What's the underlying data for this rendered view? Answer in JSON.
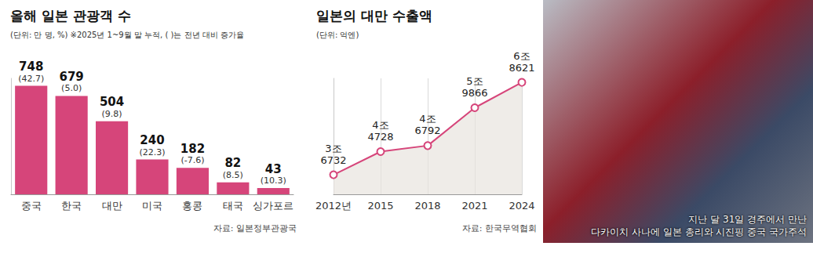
{
  "chart_data": [
    {
      "type": "bar",
      "title": "올해 일본 관광객 수",
      "subtitle": "(단위: 만 명, %) ※2025년 1~9월 말 누적, ( )는 전년 대비 증가율",
      "categories": [
        "중국",
        "한국",
        "대만",
        "미국",
        "홍콩",
        "태국",
        "싱가포르"
      ],
      "values": [
        748,
        679,
        504,
        240,
        182,
        82,
        43
      ],
      "growth": [
        42.7,
        5.0,
        9.8,
        22.3,
        -7.6,
        8.5,
        10.3
      ],
      "growth_labels": [
        "(42.7)",
        "(5.0)",
        "(9.8)",
        "(22.3)",
        "(-7.6)",
        "(8.5)",
        "(10.3)"
      ],
      "color": "#d6457a",
      "ylim": [
        0,
        800
      ],
      "tick_labels": "x",
      "grid": false,
      "data_labels": true,
      "source": "자료: 일본정부관광국"
    },
    {
      "type": "line",
      "title": "일본의 대만 수출액",
      "subtitle": "(단위: 억엔)",
      "categories": [
        "2012년",
        "2015",
        "2018",
        "2021",
        "2024"
      ],
      "values": [
        36732,
        44728,
        46792,
        59866,
        68621
      ],
      "value_labels": [
        "3조 6732",
        "4조 4728",
        "4조 6792",
        "5조 9866",
        "6조 8621"
      ],
      "color": "#d6457a",
      "marker": "circle",
      "ylim": [
        30000,
        70000
      ],
      "tick_labels": "x",
      "grid": true,
      "data_labels": true,
      "source": "자료: 한국무역협회"
    }
  ],
  "photo": {
    "caption": [
      "지난 달 31일 경주에서 만난",
      "다카이치 사나에 일본 총리와 시진핑 중국 국가주석"
    ]
  }
}
